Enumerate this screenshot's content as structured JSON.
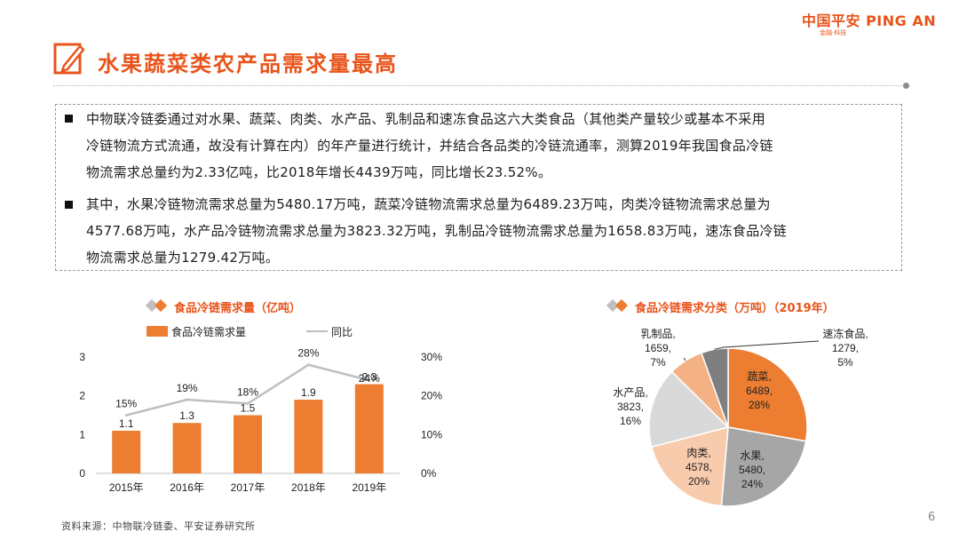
{
  "logo": {
    "brand": "中国平安 PING AN",
    "tagline": "金融·科技"
  },
  "page_title": "水果蔬菜类农产品需求量最高",
  "paragraphs": [
    [
      "中物联冷链委通过对水果、蔬菜、肉类、水产品、乳制品和速冻食品这六大类食品（其他类产量较少或基本不采用",
      "冷链物流方式流通，故没有计算在内）的年产量进行统计，并结合各品类的冷链流通率，测算2019年我国食品冷链",
      "物流需求总量约为2.33亿吨，比2018年增长4439万吨，同比增长23.52%。"
    ],
    [
      "其中，水果冷链物流需求总量为5480.17万吨，蔬菜冷链物流需求总量为6489.23万吨，肉类冷链物流需求总量为",
      "4577.68万吨，水产品冷链物流需求总量为3823.32万吨，乳制品冷链物流需求总量为1658.83万吨，速冻食品冷链",
      "物流需求总量为1279.42万吨。"
    ]
  ],
  "colors": {
    "accent": "#e8541b",
    "bar": "#ed7d31",
    "line": "#bfbfbf"
  },
  "chart_data": [
    {
      "type": "bar",
      "title": "食品冷链需求量（亿吨）",
      "categories": [
        "2015年",
        "2016年",
        "2017年",
        "2018年",
        "2019年"
      ],
      "series": [
        {
          "name": "食品冷链需求量",
          "kind": "bar",
          "axis": "left",
          "values": [
            1.1,
            1.3,
            1.5,
            1.9,
            2.3
          ],
          "labels": [
            "1.1",
            "1.3",
            "1.5",
            "1.9",
            "2.3"
          ]
        },
        {
          "name": "同比",
          "kind": "line",
          "axis": "right",
          "values": [
            15,
            19,
            18,
            28,
            24
          ],
          "labels": [
            "15%",
            "19%",
            "18%",
            "28%",
            "24%"
          ]
        }
      ],
      "ylim": [
        0,
        3
      ],
      "yticks": [
        "0",
        "1",
        "2",
        "3"
      ],
      "y2lim": [
        0,
        30
      ],
      "y2ticks": [
        "0%",
        "10%",
        "20%",
        "30%"
      ],
      "legend": "top"
    },
    {
      "type": "pie",
      "title": "食品冷链需求分类（万吨）（2019年）",
      "slices": [
        {
          "name": "蔬菜",
          "value": 6489,
          "pct": "28%",
          "value_label": "6489",
          "color": "#ed7d31"
        },
        {
          "name": "水果",
          "value": 5480,
          "pct": "24%",
          "value_label": "5480",
          "color": "#a6a6a6"
        },
        {
          "name": "肉类",
          "value": 4578,
          "pct": "20%",
          "value_label": "4578",
          "color": "#f8cbad"
        },
        {
          "name": "水产品",
          "value": 3823,
          "pct": "16%",
          "value_label": "3823",
          "color": "#d9d9d9"
        },
        {
          "name": "乳制品",
          "value": 1659,
          "pct": "7%",
          "value_label": "1659",
          "color": "#f4b183"
        },
        {
          "name": "速冻食品",
          "value": 1279,
          "pct": "5%",
          "value_label": "1279",
          "color": "#7f7f7f"
        }
      ]
    }
  ],
  "source": "资料来源：中物联冷链委、平安证券研究所",
  "page_number": "6"
}
